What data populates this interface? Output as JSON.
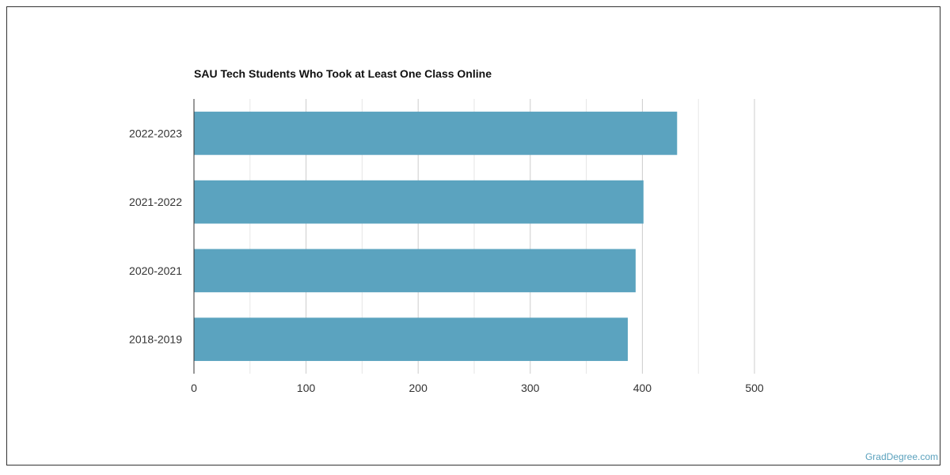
{
  "chart_data": {
    "type": "bar",
    "orientation": "horizontal",
    "title": "SAU Tech Students Who Took at Least One Class Online",
    "categories": [
      "2022-2023",
      "2021-2022",
      "2020-2021",
      "2018-2019"
    ],
    "values": [
      431,
      401,
      394,
      387
    ],
    "xlim": [
      0,
      500
    ],
    "x_ticks": [
      "0",
      "100",
      "200",
      "300",
      "400",
      "500"
    ],
    "xlabel": "",
    "ylabel": "",
    "grid": true,
    "legend": "none",
    "bar_color": "#5ba3bf"
  },
  "watermark": "GradDegree.com"
}
